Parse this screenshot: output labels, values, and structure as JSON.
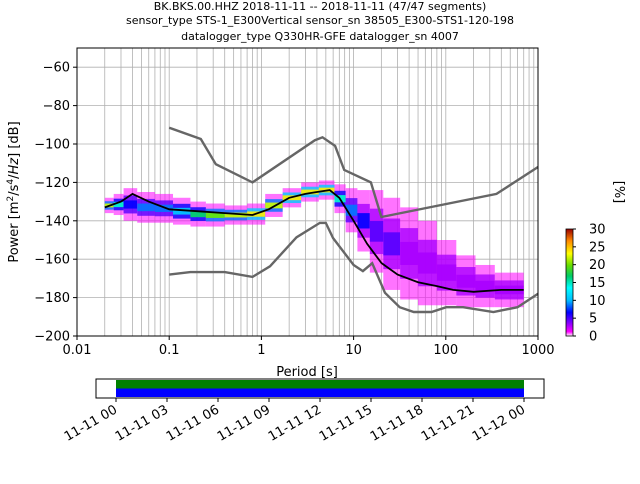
{
  "chart_data": [
    {
      "type": "heatmap",
      "title": [
        "BK.BKS.00.HHZ   2018-11-11 -- 2018-11-11  (47/47 segments)",
        "sensor_type STS-1_E300Vertical sensor_sn 38505_E300-STS1-120-198",
        "datalogger_type Q330HR-GFE datalogger_sn 4007"
      ],
      "xlabel": "Period [s]",
      "ylabel": "Power [m2/s4/Hz] [dB]",
      "x_scale": "log",
      "xlim": [
        0.01,
        1000
      ],
      "ylim": [
        -200,
        -50
      ],
      "x_ticks": [
        {
          "value": 0.01,
          "label": "0.01"
        },
        {
          "value": 0.1,
          "label": "0.1"
        },
        {
          "value": 1,
          "label": "1"
        },
        {
          "value": 10,
          "label": "10"
        },
        {
          "value": 100,
          "label": "100"
        },
        {
          "value": 1000,
          "label": "1000"
        }
      ],
      "y_ticks": [
        {
          "value": -60,
          "label": "−60"
        },
        {
          "value": -80,
          "label": "−80"
        },
        {
          "value": -100,
          "label": "−100"
        },
        {
          "value": -120,
          "label": "−120"
        },
        {
          "value": -140,
          "label": "−140"
        },
        {
          "value": -160,
          "label": "−160"
        },
        {
          "value": -180,
          "label": "−180"
        },
        {
          "value": -200,
          "label": "−200"
        }
      ],
      "grid": true,
      "colorbar": {
        "label": "[%]",
        "range": [
          0,
          30
        ],
        "ticks": [
          {
            "value": 0,
            "label": "0"
          },
          {
            "value": 5,
            "label": "5"
          },
          {
            "value": 10,
            "label": "10"
          },
          {
            "value": 15,
            "label": "15"
          },
          {
            "value": 20,
            "label": "20"
          },
          {
            "value": 25,
            "label": "25"
          },
          {
            "value": 30,
            "label": "30"
          }
        ]
      },
      "noise_models": {
        "color": "#666666",
        "high": {
          "x": [
            0.1,
            0.22,
            0.32,
            0.8,
            3.8,
            4.6,
            6.3,
            7.9,
            15.4,
            20,
            354.8,
            1000
          ],
          "y": [
            -91.5,
            -97.4,
            -110.5,
            -120,
            -98,
            -96.5,
            -101,
            -113.5,
            -120,
            -138,
            -126,
            -112
          ]
        },
        "low": {
          "x": [
            0.1,
            0.17,
            0.4,
            0.8,
            1.24,
            2.4,
            4.3,
            5,
            6,
            10,
            12.6,
            15.9,
            21.9,
            31.6,
            45,
            70,
            101,
            154,
            328,
            600,
            1000
          ],
          "y": [
            -168,
            -166.7,
            -166.7,
            -169.2,
            -163.7,
            -148.6,
            -141.1,
            -141.1,
            -149,
            -163,
            -166.2,
            -162.1,
            -177.5,
            -185,
            -187.5,
            -187.5,
            -185,
            -185,
            -187.5,
            -185,
            -178
          ]
        }
      },
      "psd_bins": [
        {
          "x": [
            0.02,
            0.025
          ],
          "y": [
            -136,
            -128
          ],
          "density": 20
        },
        {
          "x": [
            0.025,
            0.032
          ],
          "y": [
            -137,
            -126
          ],
          "density": 14
        },
        {
          "x": [
            0.032,
            0.045
          ],
          "y": [
            -140,
            -123
          ],
          "density": 8
        },
        {
          "x": [
            0.045,
            0.07
          ],
          "y": [
            -141,
            -125
          ],
          "density": 10
        },
        {
          "x": [
            0.07,
            0.11
          ],
          "y": [
            -141,
            -126
          ],
          "density": 9
        },
        {
          "x": [
            0.11,
            0.17
          ],
          "y": [
            -142,
            -128
          ],
          "density": 12
        },
        {
          "x": [
            0.17,
            0.25
          ],
          "y": [
            -143,
            -130
          ],
          "density": 16
        },
        {
          "x": [
            0.25,
            0.4
          ],
          "y": [
            -143,
            -131
          ],
          "density": 18
        },
        {
          "x": [
            0.4,
            0.7
          ],
          "y": [
            -142,
            -132
          ],
          "density": 20
        },
        {
          "x": [
            0.7,
            1.1
          ],
          "y": [
            -142,
            -131
          ],
          "density": 22
        },
        {
          "x": [
            1.1,
            1.7
          ],
          "y": [
            -138,
            -126
          ],
          "density": 20
        },
        {
          "x": [
            1.7,
            2.7
          ],
          "y": [
            -133,
            -123
          ],
          "density": 22
        },
        {
          "x": [
            2.7,
            4.2
          ],
          "y": [
            -130,
            -120
          ],
          "density": 22
        },
        {
          "x": [
            4.2,
            6.2
          ],
          "y": [
            -129,
            -119
          ],
          "density": 24
        },
        {
          "x": [
            6.2,
            8.2
          ],
          "y": [
            -136,
            -121
          ],
          "density": 14
        },
        {
          "x": [
            8.2,
            11
          ],
          "y": [
            -146,
            -123
          ],
          "density": 9
        },
        {
          "x": [
            11,
            15
          ],
          "y": [
            -156,
            -124
          ],
          "density": 6
        },
        {
          "x": [
            15,
            21
          ],
          "y": [
            -167,
            -124
          ],
          "density": 5
        },
        {
          "x": [
            21,
            32
          ],
          "y": [
            -176,
            -128
          ],
          "density": 4
        },
        {
          "x": [
            32,
            50
          ],
          "y": [
            -181,
            -133
          ],
          "density": 3
        },
        {
          "x": [
            50,
            80
          ],
          "y": [
            -184,
            -140
          ],
          "density": 3
        },
        {
          "x": [
            80,
            130
          ],
          "y": [
            -184,
            -150
          ],
          "density": 3
        },
        {
          "x": [
            130,
            210
          ],
          "y": [
            -185,
            -158
          ],
          "density": 3
        },
        {
          "x": [
            210,
            340
          ],
          "y": [
            -185,
            -163
          ],
          "density": 3
        },
        {
          "x": [
            340,
            700
          ],
          "y": [
            -185,
            -167
          ],
          "density": 3
        }
      ],
      "mode_line": {
        "color": "#000000",
        "x": [
          0.02,
          0.03,
          0.04,
          0.06,
          0.1,
          0.2,
          0.4,
          0.8,
          1.2,
          2,
          3,
          4,
          5.5,
          7,
          10,
          14,
          20,
          30,
          50,
          80,
          120,
          200,
          400,
          700
        ],
        "y": [
          -133,
          -130,
          -126,
          -130,
          -134,
          -135,
          -136,
          -137,
          -134,
          -128,
          -126,
          -125,
          -124,
          -128,
          -140,
          -152,
          -162,
          -168,
          -172,
          -174,
          -176,
          -177,
          -176,
          -176
        ]
      }
    },
    {
      "type": "timeline",
      "tick_labels": [
        "11-11 00",
        "11-11 03",
        "11-11 06",
        "11-11 09",
        "11-11 12",
        "11-11 15",
        "11-11 18",
        "11-11 21",
        "11-12 00"
      ],
      "bars": [
        {
          "color": "#008000",
          "start": "11-11 00",
          "end": "11-12 00"
        },
        {
          "color": "#0000ff",
          "start": "11-11 00",
          "end": "11-12 00"
        }
      ]
    }
  ]
}
